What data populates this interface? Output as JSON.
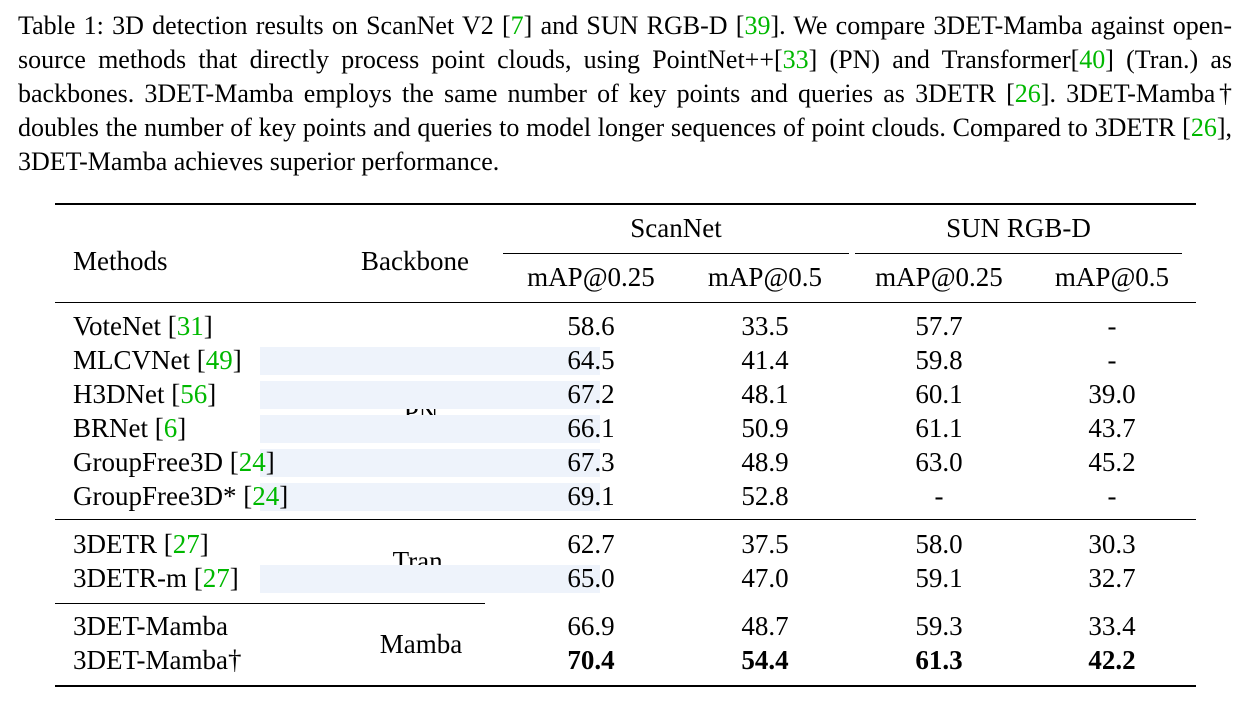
{
  "caption": {
    "label": "Table 1:",
    "s1": " 3D detection results on ScanNet V2 [",
    "c1": "7",
    "s2": "] and SUN RGB-D [",
    "c2": "39",
    "s3": "]. We compare 3DET-Mamba against open-source methods that directly process point clouds, using PointNet++[",
    "c3": "33",
    "s4": "] (PN) and Transformer[",
    "c4": "40",
    "s5": "] (Tran.) as backbones. 3DET-Mamba employs the same number of key points and queries as 3DETR [",
    "c5": "26",
    "s6": "]. 3DET-Mamba† doubles the number of key points and queries to model longer sequences of point clouds. Compared to 3DETR [",
    "c6": "26",
    "s7": "], 3DET-Mamba achieves superior performance."
  },
  "table": {
    "header": {
      "methods": "Methods",
      "backbone": "Backbone",
      "scannet": "ScanNet",
      "sunrgbd": "SUN RGB-D",
      "map025": "mAP@0.25",
      "map05": "mAP@0.5"
    },
    "groups": [
      {
        "backbone": "PN",
        "rows": [
          {
            "name": "VoteNet [",
            "cite": "31",
            "close": "]",
            "v": [
              "58.6",
              "33.5",
              "57.7",
              "-"
            ]
          },
          {
            "name": "MLCVNet [",
            "cite": "49",
            "close": "]",
            "v": [
              "64.5",
              "41.4",
              "59.8",
              "-"
            ]
          },
          {
            "name": "H3DNet [",
            "cite": "56",
            "close": "]",
            "v": [
              "67.2",
              "48.1",
              "60.1",
              "39.0"
            ]
          },
          {
            "name": "BRNet [",
            "cite": "6",
            "close": "]",
            "v": [
              "66.1",
              "50.9",
              "61.1",
              "43.7"
            ]
          },
          {
            "name": "GroupFree3D [",
            "cite": "24",
            "close": "]",
            "v": [
              "67.3",
              "48.9",
              "63.0",
              "45.2"
            ]
          },
          {
            "name": "GroupFree3D*  [",
            "cite": "24",
            "close": "]",
            "v": [
              "69.1",
              "52.8",
              "-",
              "-"
            ]
          }
        ]
      },
      {
        "backbone": "Tran.",
        "rows": [
          {
            "name": "3DETR [",
            "cite": "27",
            "close": "]",
            "v": [
              "62.7",
              "37.5",
              "58.0",
              "30.3"
            ]
          },
          {
            "name": "3DETR-m [",
            "cite": "27",
            "close": "]",
            "v": [
              "65.0",
              "47.0",
              "59.1",
              "32.7"
            ]
          }
        ]
      },
      {
        "backbone": "Mamba",
        "rows": [
          {
            "name": "3DET-Mamba",
            "cite": "",
            "close": "",
            "v": [
              "66.9",
              "48.7",
              "59.3",
              "33.4"
            ]
          },
          {
            "name": "3DET-Mamba†",
            "cite": "",
            "close": "",
            "v": [
              "70.4",
              "54.4",
              "61.3",
              "42.2"
            ],
            "bold": true
          }
        ]
      }
    ]
  },
  "colors": {
    "citation": "#00b800",
    "text": "#000000"
  }
}
